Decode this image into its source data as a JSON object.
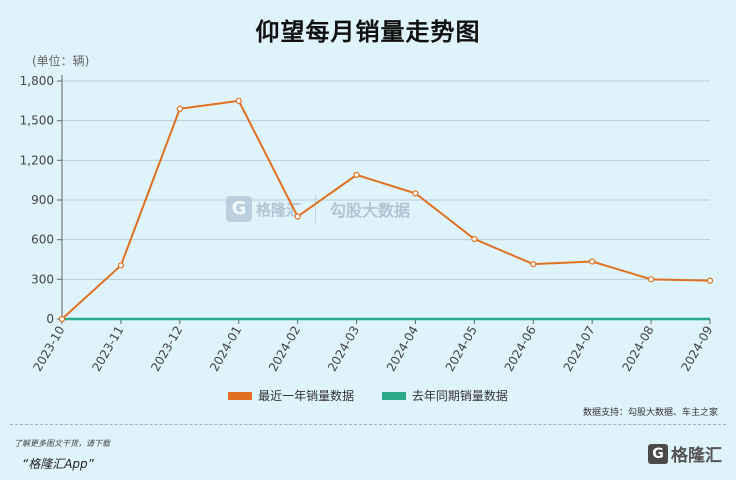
{
  "header": {
    "title": "仰望每月销量走势图",
    "unit": "(单位：辆)"
  },
  "legend": {
    "series1_label": "最近一年销量数据",
    "series2_label": "去年同期销量数据",
    "series1_color": "#e07020",
    "series2_color": "#2aa88a",
    "placement": "bottom-center"
  },
  "source": "数据支持：勾股大数据、车主之家",
  "footer": {
    "note": "了解更多图文干货，请下载",
    "app": "“格隆汇App”",
    "brand": "格隆汇",
    "brand_logo": "G"
  },
  "watermark": {
    "logo": "G",
    "text1": "格隆汇",
    "text2": "勾股大数据"
  },
  "chart_data": {
    "type": "line",
    "categories": [
      "2023-10",
      "2023-11",
      "2023-12",
      "2024-01",
      "2024-02",
      "2024-03",
      "2024-04",
      "2024-05",
      "2024-06",
      "2024-07",
      "2024-08",
      "2024-09"
    ],
    "series": [
      {
        "name": "最近一年销量数据",
        "color": "#e07020",
        "values": [
          0,
          405,
          1590,
          1650,
          775,
          1090,
          950,
          605,
          415,
          435,
          300,
          290
        ]
      },
      {
        "name": "去年同期销量数据",
        "color": "#2aa88a",
        "values": [
          0,
          0,
          0,
          0,
          0,
          0,
          0,
          0,
          0,
          0,
          0,
          0
        ]
      }
    ],
    "yticks": [
      "0",
      "300",
      "600",
      "900",
      "1,200",
      "1,500",
      "1,800"
    ],
    "ylim": [
      0,
      1800
    ],
    "grid": true
  }
}
